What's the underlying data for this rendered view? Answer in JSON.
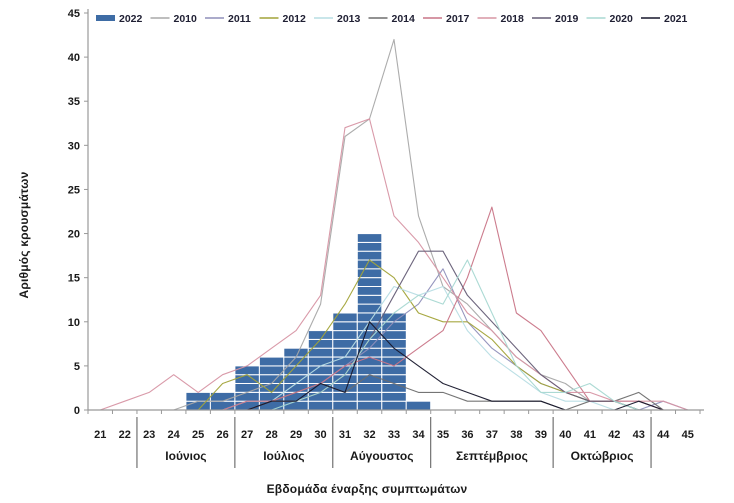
{
  "chart_data": {
    "type": "bar+line combo",
    "title": "",
    "xlabel": "Εβδομάδα έναρξης συμπτωμάτων",
    "ylabel": "Αριθμός κρουσμάτων",
    "x": [
      21,
      22,
      23,
      24,
      25,
      26,
      27,
      28,
      29,
      30,
      31,
      32,
      33,
      34,
      35,
      36,
      37,
      38,
      39,
      40,
      41,
      42,
      43,
      44,
      45
    ],
    "ylim": [
      0,
      45
    ],
    "y_tick_step": 5,
    "grid": false,
    "legend_position": "top",
    "bar_series": {
      "name": "2022",
      "color": "#3e6ca5",
      "cell_border_color": "#ffffff",
      "values": [
        0,
        0,
        0,
        0,
        2,
        2,
        5,
        6,
        7,
        9,
        11,
        20,
        11,
        1,
        0,
        0,
        0,
        0,
        0,
        0,
        0,
        0,
        0,
        0,
        0
      ]
    },
    "line_series": [
      {
        "name": "2010",
        "color": "#a8a8a8",
        "values": [
          0,
          0,
          0,
          0,
          1,
          1,
          2,
          3,
          6,
          12,
          31,
          33,
          42,
          22,
          14,
          12,
          9,
          6,
          4,
          3,
          1,
          1,
          1,
          0,
          0
        ]
      },
      {
        "name": "2011",
        "color": "#8f8fba",
        "values": [
          0,
          0,
          0,
          0,
          0,
          0,
          0,
          1,
          2,
          3,
          5,
          7,
          10,
          12,
          16,
          10,
          7,
          5,
          3,
          2,
          1,
          1,
          0,
          1,
          0
        ]
      },
      {
        "name": "2012",
        "color": "#a2a338",
        "values": [
          0,
          0,
          0,
          0,
          0,
          3,
          4,
          2,
          5,
          8,
          12,
          17,
          15,
          11,
          10,
          10,
          8,
          5,
          3,
          2,
          1,
          1,
          0,
          0,
          0
        ]
      },
      {
        "name": "2013",
        "color": "#b7dde4",
        "values": [
          0,
          0,
          0,
          0,
          0,
          0,
          1,
          1,
          3,
          5,
          6,
          10,
          14,
          13,
          14,
          9,
          6,
          4,
          2,
          1,
          1,
          0,
          0,
          0,
          0
        ]
      },
      {
        "name": "2014",
        "color": "#6e6e6e",
        "values": [
          0,
          0,
          0,
          0,
          0,
          0,
          0,
          1,
          2,
          3,
          2,
          4,
          3,
          2,
          2,
          1,
          1,
          1,
          1,
          0,
          1,
          1,
          2,
          0,
          0
        ]
      },
      {
        "name": "2017",
        "color": "#c97587",
        "values": [
          0,
          0,
          0,
          0,
          0,
          0,
          1,
          1,
          2,
          3,
          5,
          6,
          5,
          7,
          9,
          15,
          23,
          11,
          9,
          5,
          1,
          1,
          1,
          0,
          0
        ]
      },
      {
        "name": "2018",
        "color": "#d795a4",
        "values": [
          0,
          1,
          2,
          4,
          2,
          4,
          5,
          7,
          9,
          13,
          32,
          33,
          22,
          19,
          15,
          11,
          9,
          6,
          4,
          2,
          2,
          1,
          1,
          1,
          0
        ]
      },
      {
        "name": "2019",
        "color": "#655d76",
        "values": [
          0,
          0,
          0,
          0,
          0,
          0,
          0,
          1,
          1,
          2,
          4,
          8,
          13,
          18,
          18,
          13,
          10,
          7,
          4,
          2,
          1,
          1,
          0,
          0,
          0
        ]
      },
      {
        "name": "2020",
        "color": "#a8d8d2",
        "values": [
          0,
          0,
          0,
          0,
          0,
          0,
          0,
          0,
          1,
          2,
          4,
          8,
          11,
          13,
          12,
          17,
          11,
          5,
          2,
          2,
          3,
          1,
          0,
          0,
          0
        ]
      },
      {
        "name": "2021",
        "color": "#17172b",
        "values": [
          0,
          0,
          0,
          0,
          0,
          0,
          0,
          1,
          1,
          3,
          2,
          10,
          7,
          5,
          3,
          2,
          1,
          1,
          1,
          0,
          0,
          0,
          1,
          0,
          0
        ]
      }
    ],
    "legend_order": [
      "2022",
      "2010",
      "2011",
      "2012",
      "2013",
      "2014",
      "2017",
      "2018",
      "2019",
      "2020",
      "2021"
    ],
    "months": [
      {
        "label": "Ιούνιος",
        "from": 22.5,
        "to": 26.5
      },
      {
        "label": "Ιούλιος",
        "from": 26.5,
        "to": 30.5
      },
      {
        "label": "Αύγουστος",
        "from": 30.5,
        "to": 34.5
      },
      {
        "label": "Σεπτέμβριος",
        "from": 34.5,
        "to": 39.5
      },
      {
        "label": "Οκτώβριος",
        "from": 39.5,
        "to": 43.5
      }
    ],
    "axis_color": "#999999",
    "text_color": "#1a1a1a"
  }
}
